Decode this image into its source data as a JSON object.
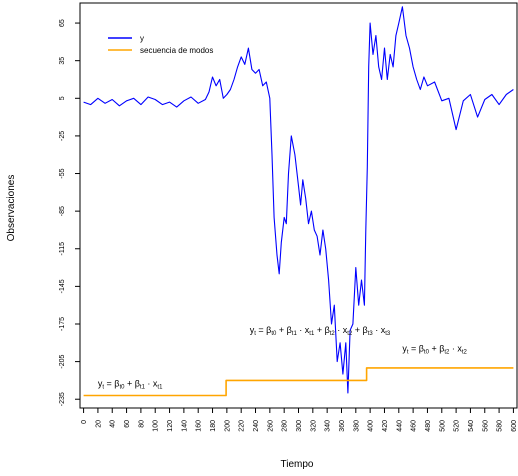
{
  "chart_data": {
    "type": "line",
    "title": "",
    "xlabel": "Tiempo",
    "ylabel": "Observaciones",
    "xlim": [
      -5,
      605
    ],
    "ylim": [
      -242,
      81
    ],
    "xticks": [
      0,
      20,
      40,
      60,
      80,
      100,
      120,
      140,
      160,
      180,
      200,
      220,
      240,
      260,
      280,
      300,
      320,
      340,
      360,
      380,
      400,
      420,
      440,
      460,
      480,
      500,
      520,
      540,
      560,
      580,
      600
    ],
    "yticks": [
      65,
      35,
      5,
      -25,
      -55,
      -85,
      -115,
      -145,
      -175,
      -205,
      -235
    ],
    "grid": false,
    "legend_position": "top-left",
    "colors": {
      "y": "#0000ff",
      "modes": "#ffa500",
      "axis": "#000000"
    },
    "series": [
      {
        "name": "y",
        "color": "#0000ff",
        "x": [
          0,
          10,
          20,
          30,
          40,
          50,
          60,
          70,
          80,
          90,
          100,
          110,
          120,
          130,
          140,
          150,
          160,
          170,
          175,
          180,
          185,
          190,
          195,
          200,
          205,
          210,
          215,
          220,
          225,
          230,
          235,
          240,
          245,
          250,
          255,
          260,
          263,
          266,
          270,
          273,
          276,
          280,
          283,
          286,
          290,
          295,
          300,
          303,
          306,
          310,
          314,
          318,
          322,
          326,
          330,
          334,
          338,
          342,
          346,
          350,
          354,
          358,
          362,
          366,
          369,
          372,
          376,
          380,
          384,
          388,
          392,
          394,
          396,
          398,
          400,
          404,
          408,
          412,
          416,
          420,
          424,
          428,
          432,
          436,
          440,
          445,
          450,
          455,
          460,
          465,
          470,
          475,
          480,
          490,
          500,
          510,
          520,
          530,
          540,
          550,
          560,
          570,
          580,
          590,
          600
        ],
        "values": [
          2,
          0,
          5,
          1,
          4,
          -1,
          3,
          5,
          0,
          6,
          4,
          0,
          2,
          -2,
          3,
          6,
          1,
          4,
          10,
          22,
          15,
          20,
          5,
          8,
          12,
          20,
          30,
          38,
          32,
          45,
          28,
          25,
          28,
          15,
          18,
          5,
          -40,
          -90,
          -120,
          -135,
          -110,
          -90,
          -95,
          -55,
          -25,
          -40,
          -65,
          -80,
          -60,
          -75,
          -95,
          -85,
          -100,
          -105,
          -120,
          -100,
          -115,
          -140,
          -175,
          -160,
          -205,
          -190,
          -215,
          -190,
          -230,
          -180,
          -175,
          -130,
          -160,
          -140,
          -160,
          -100,
          -50,
          30,
          65,
          40,
          55,
          30,
          20,
          45,
          20,
          40,
          30,
          55,
          65,
          78,
          55,
          45,
          30,
          20,
          12,
          22,
          15,
          18,
          3,
          5,
          -20,
          3,
          8,
          -10,
          4,
          8,
          0,
          8,
          12
        ]
      },
      {
        "name": "secuencia de modos",
        "color": "#ffa500",
        "x": [
          0,
          199,
          199,
          395,
          395,
          600
        ],
        "values": [
          -232,
          -232,
          -220,
          -220,
          -210,
          -210
        ]
      }
    ],
    "annotations": [
      {
        "label": "y_t = β_t0 + β_t1 · x_t1",
        "x": 65,
        "y": -225
      },
      {
        "label": "y_t = β_t0 + β_t1 · x_t1 + β_t2 · x_t2 + β_t3 · x_t3",
        "x": 330,
        "y": -182
      },
      {
        "label": "y_t = β_t0 + β_t2 · x_t2",
        "x": 490,
        "y": -197
      }
    ]
  }
}
